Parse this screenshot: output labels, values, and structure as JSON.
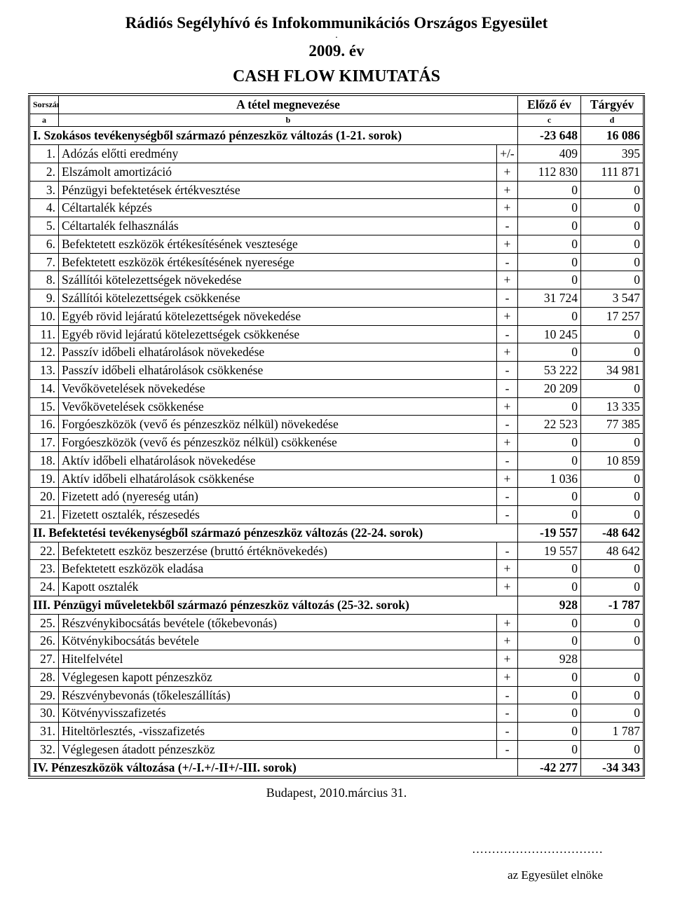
{
  "header": {
    "org": "Rádiós Segélyhívó és Infokommunikációs Országos Egyesület",
    "dot": ".",
    "year": "2009. év",
    "report": "CASH FLOW KIMUTATÁS"
  },
  "columns": {
    "num": "Sorszám",
    "name": "A tétel megnevezése",
    "prev": "Előző év",
    "curr": "Tárgyév",
    "a": "a",
    "b": "b",
    "c": "c",
    "d": "d"
  },
  "sections": [
    {
      "label": "I. Szokásos tevékenységből származó pénzeszköz változás (1-21. sorok)",
      "prev": "-23 648",
      "curr": "16 086",
      "rows": [
        {
          "n": "1.",
          "name": "Adózás előtti eredmény",
          "sign": "+/-",
          "prev": "409",
          "curr": "395"
        },
        {
          "n": "2.",
          "name": "Elszámolt amortizáció",
          "sign": "+",
          "prev": "112 830",
          "curr": "111 871"
        },
        {
          "n": "3.",
          "name": "Pénzügyi befektetések értékvesztése",
          "sign": "+",
          "prev": "0",
          "curr": "0"
        },
        {
          "n": "4.",
          "name": "Céltartalék képzés",
          "sign": "+",
          "prev": "0",
          "curr": "0"
        },
        {
          "n": "5.",
          "name": "Céltartalék felhasználás",
          "sign": "-",
          "prev": "0",
          "curr": "0"
        },
        {
          "n": "6.",
          "name": "Befektetett eszközök értékesítésének vesztesége",
          "sign": "+",
          "prev": "0",
          "curr": "0"
        },
        {
          "n": "7.",
          "name": "Befektetett eszközök értékesítésének nyeresége",
          "sign": "-",
          "prev": "0",
          "curr": "0"
        },
        {
          "n": "8.",
          "name": "Szállítói kötelezettségek növekedése",
          "sign": "+",
          "prev": "0",
          "curr": "0"
        },
        {
          "n": "9.",
          "name": "Szállítói kötelezettségek csökkenése",
          "sign": "-",
          "prev": "31 724",
          "curr": "3 547"
        },
        {
          "n": "10.",
          "name": "Egyéb rövid lejáratú kötelezettségek növekedése",
          "sign": "+",
          "prev": "0",
          "curr": "17 257"
        },
        {
          "n": "11.",
          "name": "Egyéb rövid lejáratú kötelezettségek csökkenése",
          "sign": "-",
          "prev": "10 245",
          "curr": "0"
        },
        {
          "n": "12.",
          "name": "Passzív időbeli elhatárolások növekedése",
          "sign": "+",
          "prev": "0",
          "curr": "0"
        },
        {
          "n": "13.",
          "name": "Passzív időbeli elhatárolások csökkenése",
          "sign": "-",
          "prev": "53 222",
          "curr": "34 981"
        },
        {
          "n": "14.",
          "name": "Vevőkövetelések növekedése",
          "sign": "-",
          "prev": "20 209",
          "curr": "0"
        },
        {
          "n": "15.",
          "name": "Vevőkövetelések csökkenése",
          "sign": "+",
          "prev": "0",
          "curr": "13 335"
        },
        {
          "n": "16.",
          "name": "Forgóeszközök (vevő és pénzeszköz nélkül) növekedése",
          "sign": "-",
          "prev": "22 523",
          "curr": "77 385"
        },
        {
          "n": "17.",
          "name": "Forgóeszközök (vevő és pénzeszköz nélkül) csökkenése",
          "sign": "+",
          "prev": "0",
          "curr": "0"
        },
        {
          "n": "18.",
          "name": "Aktív időbeli elhatárolások növekedése",
          "sign": "-",
          "prev": "0",
          "curr": "10 859"
        },
        {
          "n": "19.",
          "name": "Aktív időbeli elhatárolások csökkenése",
          "sign": "+",
          "prev": "1 036",
          "curr": "0"
        },
        {
          "n": "20.",
          "name": "Fizetett adó (nyereség után)",
          "sign": "-",
          "prev": "0",
          "curr": "0"
        },
        {
          "n": "21.",
          "name": "Fizetett osztalék, részesedés",
          "sign": "-",
          "prev": "0",
          "curr": "0"
        }
      ]
    },
    {
      "label": "II. Befektetési tevékenységből származó pénzeszköz változás (22-24. sorok)",
      "prev": "-19 557",
      "curr": "-48 642",
      "rows": [
        {
          "n": "22.",
          "name": "Befektetett eszköz beszerzése (bruttó értéknövekedés)",
          "sign": "-",
          "prev": "19 557",
          "curr": "48 642"
        },
        {
          "n": "23.",
          "name": "Befektetett eszközök eladása",
          "sign": "+",
          "prev": "0",
          "curr": "0"
        },
        {
          "n": "24.",
          "name": "Kapott osztalék",
          "sign": "+",
          "prev": "0",
          "curr": "0"
        }
      ]
    },
    {
      "label": "III. Pénzügyi műveletekből származó pénzeszköz változás (25-32. sorok)",
      "prev": "928",
      "curr": "-1 787",
      "rows": [
        {
          "n": "25.",
          "name": "Részvénykibocsátás bevétele (tőkebevonás)",
          "sign": "+",
          "prev": "0",
          "curr": "0"
        },
        {
          "n": "26.",
          "name": "Kötvénykibocsátás bevétele",
          "sign": "+",
          "prev": "0",
          "curr": "0"
        },
        {
          "n": "27.",
          "name": "Hitelfelvétel",
          "sign": "+",
          "prev": "928",
          "curr": ""
        },
        {
          "n": "28.",
          "name": "Véglegesen kapott pénzeszköz",
          "sign": "+",
          "prev": "0",
          "curr": "0"
        },
        {
          "n": "29.",
          "name": "Részvénybevonás (tőkeleszállítás)",
          "sign": "-",
          "prev": "0",
          "curr": "0"
        },
        {
          "n": "30.",
          "name": "Kötvényvisszafizetés",
          "sign": "-",
          "prev": "0",
          "curr": "0"
        },
        {
          "n": "31.",
          "name": "Hiteltörlesztés, -visszafizetés",
          "sign": "-",
          "prev": "0",
          "curr": "1 787"
        },
        {
          "n": "32.",
          "name": "Véglegesen átadott pénzeszköz",
          "sign": "-",
          "prev": "0",
          "curr": "0"
        }
      ]
    }
  ],
  "total": {
    "label": "IV. Pénzeszközök változása (+/-I.+/-II+/-III. sorok)",
    "prev": "-42 277",
    "curr": "-34 343"
  },
  "footer": {
    "date": "Budapest, 2010.március 31.",
    "dots": "……………………………",
    "role": "az Egyesület elnöke"
  },
  "style": {
    "font": "Times New Roman",
    "bg": "#ffffff",
    "fg": "#000000"
  }
}
